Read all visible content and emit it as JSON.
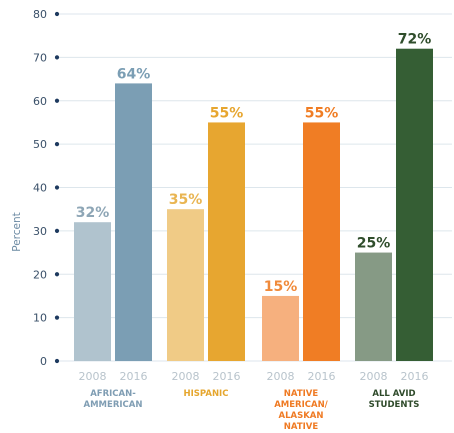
{
  "chart_data": {
    "type": "bar",
    "ylabel": "Percent",
    "ylim": [
      0,
      80
    ],
    "yticks": [
      0,
      10,
      20,
      30,
      40,
      50,
      60,
      70,
      80
    ],
    "grid": true,
    "x_label_years": [
      "2008",
      "2016"
    ],
    "groups": [
      {
        "name_lines": [
          "AFRICAN-",
          "AMMERICAN"
        ],
        "label_color": "#7f9db3",
        "bars": [
          {
            "year": "2008",
            "value": 32,
            "label": "32%",
            "color": "#b0c3ce",
            "label_color": "#8ea6b6"
          },
          {
            "year": "2016",
            "value": 64,
            "label": "64%",
            "color": "#7b9eb4",
            "label_color": "#7b9eb4"
          }
        ]
      },
      {
        "name_lines": [
          "HISPANIC"
        ],
        "label_color": "#e5a62e",
        "bars": [
          {
            "year": "2008",
            "value": 35,
            "label": "35%",
            "color": "#f0cb86",
            "label_color": "#e9b552"
          },
          {
            "year": "2016",
            "value": 55,
            "label": "55%",
            "color": "#e7a630",
            "label_color": "#e7a630"
          }
        ]
      },
      {
        "name_lines": [
          "NATIVE",
          "AMERICAN/",
          "ALASKAN",
          "NATIVE"
        ],
        "label_color": "#ef7a23",
        "bars": [
          {
            "year": "2008",
            "value": 15,
            "label": "15%",
            "color": "#f6b07e",
            "label_color": "#f08a3a"
          },
          {
            "year": "2016",
            "value": 55,
            "label": "55%",
            "color": "#f07d24",
            "label_color": "#f07d24"
          }
        ]
      },
      {
        "name_lines": [
          "ALL AVID",
          "STUDENTS"
        ],
        "label_color": "#2e4a2a",
        "bars": [
          {
            "year": "2008",
            "value": 25,
            "label": "25%",
            "color": "#869a85",
            "label_color": "#2f4d2b"
          },
          {
            "year": "2016",
            "value": 72,
            "label": "72%",
            "color": "#355e34",
            "label_color": "#2f4d2b"
          }
        ]
      }
    ]
  },
  "colors": {
    "axis_text": "#3a5069",
    "grid": "#dde6ec",
    "axis_dot": "#1e3a5f",
    "year_text": "#b9c4cc"
  }
}
